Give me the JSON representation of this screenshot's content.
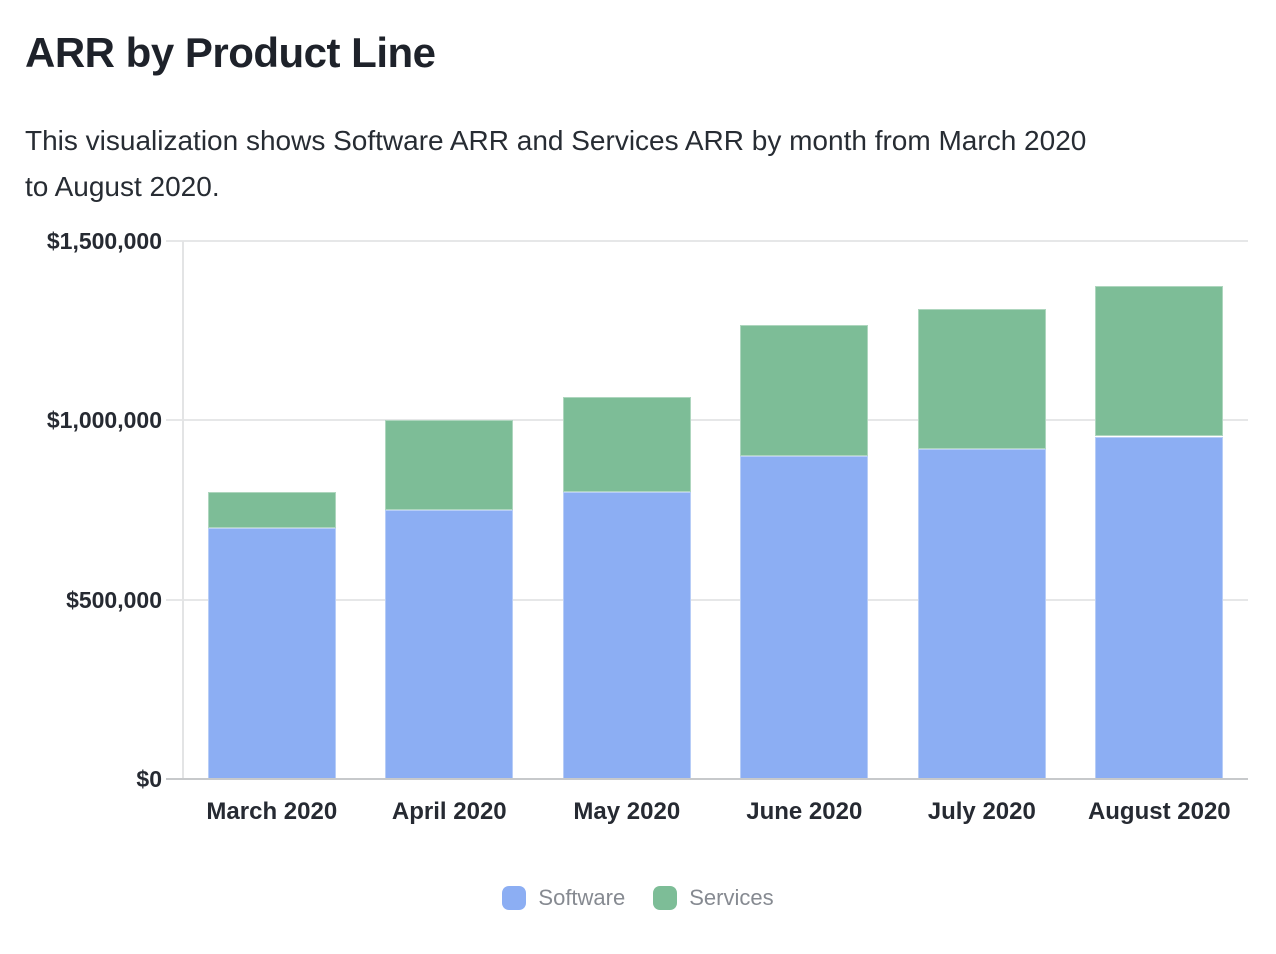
{
  "chart_data": {
    "type": "bar",
    "stacked": true,
    "title": "ARR by Product Line",
    "subtitle_lines": [
      "This visualization shows Software ARR and Services ARR by month from March 2020",
      "to August 2020."
    ],
    "categories": [
      "March 2020",
      "April 2020",
      "May 2020",
      "June 2020",
      "July 2020",
      "August 2020"
    ],
    "series": [
      {
        "name": "Software",
        "color": "#8caef3",
        "values": [
          700000,
          750000,
          800000,
          900000,
          920000,
          955000
        ]
      },
      {
        "name": "Services",
        "color": "#7dbd97",
        "values": [
          100000,
          250000,
          265000,
          365000,
          390000,
          420000
        ]
      }
    ],
    "totals": [
      800000,
      1000000,
      1065000,
      1265000,
      1310000,
      1375000
    ],
    "xlabel": "",
    "ylabel": "",
    "ylim": [
      0,
      1500000
    ],
    "y_ticks": [
      {
        "value": 1500000,
        "label": "$1,500,000"
      },
      {
        "value": 1000000,
        "label": "$1,000,000"
      },
      {
        "value": 500000,
        "label": "$500,000"
      },
      {
        "value": 0,
        "label": "$0"
      }
    ],
    "grid": true,
    "legend_position": "bottom",
    "colors": {
      "gridline": "#e6e7e8",
      "zero_line": "#c7c9cb",
      "axis_text": "#262a32",
      "legend_text": "#868a91",
      "title_text": "#1e222a"
    }
  }
}
